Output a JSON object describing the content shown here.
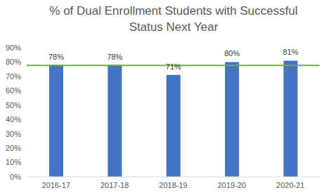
{
  "chart_data": {
    "type": "bar",
    "title": "% of Dual Enrollment Students with Successful\nStatus Next Year",
    "categories": [
      "2016-17",
      "2017-18",
      "2018-19",
      "2019-20",
      "2020-21"
    ],
    "values": [
      78,
      78,
      71,
      80,
      81
    ],
    "value_labels": [
      "78%",
      "78%",
      "71%",
      "80%",
      "81%"
    ],
    "color": "#4472c4",
    "ylim": [
      0,
      90
    ],
    "yticks": [
      {
        "value": 0,
        "label": "0%"
      },
      {
        "value": 10,
        "label": "10%"
      },
      {
        "value": 20,
        "label": "20%"
      },
      {
        "value": 30,
        "label": "30%"
      },
      {
        "value": 40,
        "label": "40%"
      },
      {
        "value": 50,
        "label": "50%"
      },
      {
        "value": 60,
        "label": "60%"
      },
      {
        "value": 70,
        "label": "70%"
      },
      {
        "value": 80,
        "label": "80%"
      },
      {
        "value": 90,
        "label": "90%"
      }
    ],
    "reference_line": {
      "value": 77.6,
      "color": "#70ad47"
    },
    "grid": false,
    "data_labels": true
  }
}
